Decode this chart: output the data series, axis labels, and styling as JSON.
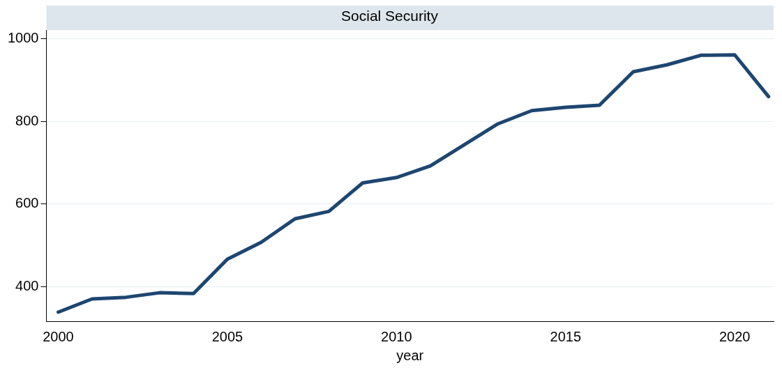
{
  "chart_data": {
    "type": "line",
    "title": "Social Security",
    "xlabel": "year",
    "x": [
      2000,
      2001,
      2002,
      2003,
      2004,
      2005,
      2006,
      2007,
      2008,
      2009,
      2010,
      2011,
      2012,
      2013,
      2014,
      2015,
      2016,
      2017,
      2018,
      2019,
      2020,
      2021
    ],
    "series": [
      {
        "color": "#1d4670",
        "values": [
          338,
          370,
          374,
          385,
          383,
          466,
          507,
          564,
          582,
          651,
          664,
          692,
          743,
          794,
          826,
          834,
          839,
          920,
          937,
          960,
          961,
          860
        ]
      }
    ],
    "xlim": [
      1999.65,
      2021.15
    ],
    "xticks": [
      2000,
      2005,
      2010,
      2015,
      2020
    ],
    "ylim": [
      316,
      1021
    ],
    "yticks": [
      400,
      600,
      800,
      1000
    ],
    "grid": "y",
    "legend": false,
    "marker": "none",
    "line_style": "solid"
  }
}
